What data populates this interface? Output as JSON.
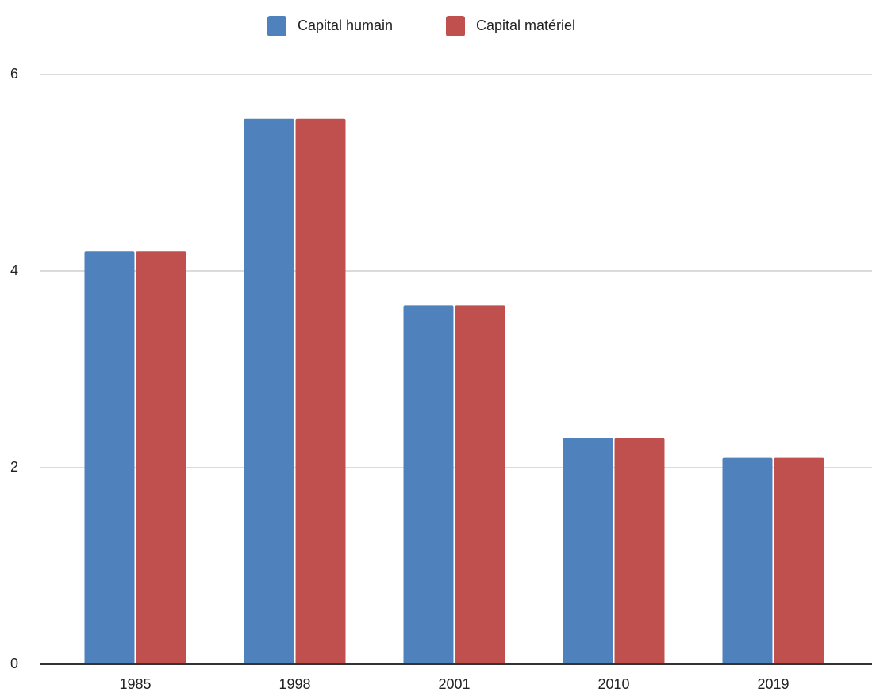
{
  "chart_data": {
    "type": "bar",
    "categories": [
      "1985",
      "1998",
      "2001",
      "2010",
      "2019"
    ],
    "series": [
      {
        "name": "Capital humain",
        "color": "#4f81bd",
        "values": [
          4.2,
          5.55,
          3.65,
          2.3,
          2.1
        ]
      },
      {
        "name": "Capital matériel",
        "color": "#c0504d",
        "values": [
          4.2,
          5.55,
          3.65,
          2.3,
          2.1
        ]
      }
    ],
    "ylim": [
      0,
      6
    ],
    "yticks": [
      0,
      2,
      4,
      6
    ],
    "grid": true,
    "legend": "top"
  }
}
